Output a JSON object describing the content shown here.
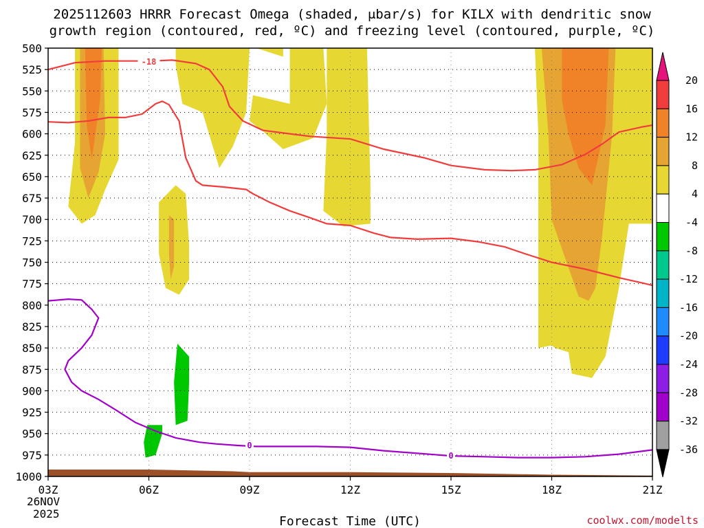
{
  "title": {
    "line1": "2025112603 HRRR Forecast Omega (shaded, μbar/s) for KILX with dendritic snow",
    "line2": "growth region (contoured, red, ºC) and freezing level (contoured, purple, ºC)"
  },
  "credit": "coolwx.com/modelts",
  "chart_data": {
    "type": "heatmap",
    "xlabel": "Forecast Time (UTC)",
    "ylabel": "",
    "x_ticks": [
      "03Z",
      "06Z",
      "09Z",
      "12Z",
      "15Z",
      "18Z",
      "21Z"
    ],
    "x_tick_hours": [
      3,
      6,
      9,
      12,
      15,
      18,
      21
    ],
    "x_date_label": [
      "26NOV",
      "2025"
    ],
    "xlim": [
      3,
      21
    ],
    "y_ticks": [
      500,
      525,
      550,
      575,
      600,
      625,
      650,
      675,
      700,
      725,
      750,
      775,
      800,
      825,
      850,
      875,
      900,
      925,
      950,
      975,
      1000
    ],
    "ylim": [
      500,
      1000
    ],
    "y_reversed": true,
    "grid": true,
    "colorbar": {
      "labels": [
        "20",
        "16",
        "12",
        "8",
        "4",
        "-4",
        "-8",
        "-12",
        "-16",
        "-20",
        "-24",
        "-28",
        "-32",
        "-36"
      ],
      "levels": [
        20,
        16,
        12,
        8,
        4,
        -4,
        -8,
        -12,
        -16,
        -20,
        -24,
        -28,
        -32,
        -36
      ],
      "colors": [
        "#f03c3c",
        "#f08228",
        "#e6a532",
        "#e6d732",
        "#ffffff",
        "#00c800",
        "#00c88c",
        "#00b4c8",
        "#1e8cff",
        "#1e3cff",
        "#8c1ee6",
        "#a000c8",
        "#a0a0a0"
      ],
      "top_arrow_color": "#e6137d",
      "bottom_arrow_color": "#000000"
    },
    "omega_shading": [
      {
        "level": 4,
        "color": "#e6d732",
        "points": [
          [
            3.8,
            500
          ],
          [
            4.6,
            500
          ],
          [
            5.1,
            500
          ],
          [
            5.1,
            630
          ],
          [
            4.7,
            665
          ],
          [
            4.4,
            695
          ],
          [
            4.0,
            705
          ],
          [
            3.6,
            685
          ],
          [
            3.8,
            610
          ]
        ]
      },
      {
        "level": 8,
        "color": "#e6a532",
        "points": [
          [
            3.95,
            500
          ],
          [
            4.65,
            500
          ],
          [
            4.7,
            600
          ],
          [
            4.5,
            645
          ],
          [
            4.2,
            675
          ],
          [
            3.95,
            640
          ]
        ]
      },
      {
        "level": 12,
        "color": "#f08228",
        "points": [
          [
            4.1,
            500
          ],
          [
            4.6,
            500
          ],
          [
            4.55,
            560
          ],
          [
            4.3,
            630
          ],
          [
            4.15,
            590
          ]
        ]
      },
      {
        "level": 4,
        "color": "#e6d732",
        "points": [
          [
            6.8,
            500
          ],
          [
            9.0,
            500
          ],
          [
            8.9,
            575
          ],
          [
            8.5,
            615
          ],
          [
            8.1,
            640
          ],
          [
            7.6,
            575
          ],
          [
            7.0,
            565
          ],
          [
            6.8,
            520
          ]
        ]
      },
      {
        "level": 4,
        "color": "#e6d732",
        "points": [
          [
            7.2,
            500
          ],
          [
            7.3,
            500
          ],
          [
            7.2,
            525
          ],
          [
            7.15,
            510
          ]
        ]
      },
      {
        "level": 4,
        "color": "#e6d732",
        "points": [
          [
            9.2,
            500
          ],
          [
            10.0,
            500
          ],
          [
            10.0,
            510
          ]
        ]
      },
      {
        "level": 4,
        "color": "#e6d732",
        "points": [
          [
            10.2,
            500
          ],
          [
            11.2,
            500
          ],
          [
            11.3,
            565
          ],
          [
            10.9,
            605
          ],
          [
            10.0,
            618
          ],
          [
            9.4,
            597
          ],
          [
            9.0,
            585
          ],
          [
            9.1,
            555
          ],
          [
            10.2,
            565
          ]
        ]
      },
      {
        "level": 4,
        "color": "#e6d732",
        "points": [
          [
            11.3,
            500
          ],
          [
            12.5,
            500
          ],
          [
            12.6,
            660
          ],
          [
            12.6,
            705
          ],
          [
            11.8,
            708
          ],
          [
            11.2,
            690
          ],
          [
            11.3,
            600
          ]
        ]
      },
      {
        "level": 4,
        "color": "#e6d732",
        "points": [
          [
            6.3,
            680
          ],
          [
            6.8,
            660
          ],
          [
            7.1,
            670
          ],
          [
            7.2,
            730
          ],
          [
            7.2,
            770
          ],
          [
            6.9,
            788
          ],
          [
            6.5,
            780
          ],
          [
            6.3,
            740
          ]
        ]
      },
      {
        "level": 8,
        "color": "#e6a532",
        "points": [
          [
            6.6,
            695
          ],
          [
            6.75,
            700
          ],
          [
            6.75,
            755
          ],
          [
            6.65,
            770
          ],
          [
            6.6,
            740
          ]
        ]
      },
      {
        "level": 4,
        "color": "#e6d732",
        "points": [
          [
            17.5,
            500
          ],
          [
            21.0,
            500
          ],
          [
            21.0,
            705
          ],
          [
            20.3,
            705
          ],
          [
            20.0,
            780
          ],
          [
            19.6,
            860
          ],
          [
            19.2,
            885
          ],
          [
            18.6,
            880
          ],
          [
            18.5,
            855
          ],
          [
            18.1,
            850
          ],
          [
            18.0,
            847
          ],
          [
            17.6,
            850
          ],
          [
            17.6,
            700
          ],
          [
            17.6,
            600
          ]
        ]
      },
      {
        "level": 8,
        "color": "#e6a532",
        "points": [
          [
            17.7,
            500
          ],
          [
            19.9,
            500
          ],
          [
            19.8,
            600
          ],
          [
            19.5,
            720
          ],
          [
            19.3,
            780
          ],
          [
            19.1,
            795
          ],
          [
            18.8,
            790
          ],
          [
            18.4,
            745
          ],
          [
            18.0,
            700
          ],
          [
            17.9,
            600
          ]
        ]
      },
      {
        "level": 12,
        "color": "#f08228",
        "points": [
          [
            18.3,
            500
          ],
          [
            19.7,
            500
          ],
          [
            19.6,
            590
          ],
          [
            19.2,
            660
          ],
          [
            18.8,
            640
          ],
          [
            18.5,
            600
          ],
          [
            18.3,
            560
          ]
        ]
      },
      {
        "level": -4,
        "color": "#00c800",
        "points": [
          [
            6.85,
            845
          ],
          [
            7.2,
            860
          ],
          [
            7.2,
            890
          ],
          [
            7.15,
            935
          ],
          [
            6.8,
            940
          ],
          [
            6.75,
            890
          ]
        ]
      },
      {
        "level": -4,
        "color": "#00c800",
        "points": [
          [
            5.95,
            940
          ],
          [
            6.4,
            940
          ],
          [
            6.4,
            950
          ],
          [
            6.2,
            975
          ],
          [
            5.9,
            978
          ],
          [
            5.85,
            960
          ]
        ]
      }
    ],
    "dgz_contours": {
      "color": "#f03c3c",
      "level_label": "-18",
      "label_position": [
        6.0,
        517
      ],
      "upper": [
        [
          3.0,
          525
        ],
        [
          3.8,
          517
        ],
        [
          4.7,
          515
        ],
        [
          5.4,
          515
        ],
        [
          6.1,
          515
        ],
        [
          6.7,
          514
        ],
        [
          7.4,
          518
        ],
        [
          7.8,
          525
        ],
        [
          8.2,
          545
        ],
        [
          8.4,
          568
        ],
        [
          8.8,
          585
        ],
        [
          9.4,
          596
        ],
        [
          10.2,
          600
        ],
        [
          10.8,
          603
        ],
        [
          12.0,
          606
        ],
        [
          13.0,
          618
        ],
        [
          14.2,
          628
        ],
        [
          15.0,
          637
        ],
        [
          16.0,
          642
        ],
        [
          16.8,
          643
        ],
        [
          17.5,
          642
        ],
        [
          18.3,
          636
        ],
        [
          19.0,
          624
        ],
        [
          19.5,
          612
        ],
        [
          20.0,
          598
        ],
        [
          20.7,
          592
        ],
        [
          21.0,
          590
        ]
      ],
      "lower": [
        [
          3.0,
          586
        ],
        [
          3.6,
          587
        ],
        [
          4.2,
          585
        ],
        [
          4.8,
          581
        ],
        [
          5.3,
          581
        ],
        [
          5.8,
          577
        ],
        [
          6.2,
          565
        ],
        [
          6.4,
          562
        ],
        [
          6.6,
          566
        ],
        [
          6.9,
          585
        ],
        [
          7.1,
          628
        ],
        [
          7.4,
          655
        ],
        [
          7.6,
          660
        ],
        [
          8.2,
          662
        ],
        [
          8.9,
          665
        ],
        [
          9.1,
          670
        ],
        [
          9.6,
          680
        ],
        [
          10.2,
          690
        ],
        [
          10.8,
          698
        ],
        [
          11.3,
          705
        ],
        [
          12.0,
          707
        ],
        [
          12.7,
          716
        ],
        [
          13.2,
          721
        ],
        [
          14.0,
          723
        ],
        [
          15.0,
          722
        ],
        [
          15.8,
          726
        ],
        [
          16.6,
          732
        ],
        [
          17.2,
          740
        ],
        [
          18.0,
          750
        ],
        [
          19.0,
          758
        ],
        [
          20.0,
          768
        ],
        [
          20.8,
          775
        ],
        [
          21.0,
          777
        ]
      ]
    },
    "freezing_level": {
      "color": "#a000c8",
      "level_label": "0",
      "label_positions": [
        [
          9.0,
          964
        ],
        [
          15.0,
          976
        ]
      ],
      "points": [
        [
          3.0,
          795
        ],
        [
          3.6,
          793
        ],
        [
          4.0,
          794
        ],
        [
          4.3,
          805
        ],
        [
          4.5,
          815
        ],
        [
          4.3,
          835
        ],
        [
          4.0,
          850
        ],
        [
          3.6,
          865
        ],
        [
          3.5,
          875
        ],
        [
          3.7,
          890
        ],
        [
          4.0,
          900
        ],
        [
          4.5,
          910
        ],
        [
          5.0,
          922
        ],
        [
          5.6,
          937
        ],
        [
          6.2,
          947
        ],
        [
          6.8,
          955
        ],
        [
          7.5,
          960
        ],
        [
          8.0,
          962
        ],
        [
          8.7,
          964
        ],
        [
          9.2,
          965
        ],
        [
          10.0,
          965
        ],
        [
          11.0,
          965
        ],
        [
          12.0,
          966
        ],
        [
          13.0,
          970
        ],
        [
          14.0,
          973
        ],
        [
          15.0,
          976
        ],
        [
          16.0,
          977
        ],
        [
          17.0,
          978
        ],
        [
          18.0,
          978
        ],
        [
          19.0,
          977
        ],
        [
          20.0,
          974
        ],
        [
          20.6,
          971
        ],
        [
          21.0,
          969
        ]
      ]
    },
    "ground": {
      "color": "#9c5028",
      "points": [
        [
          3.0,
          992
        ],
        [
          6.0,
          992
        ],
        [
          8.5,
          994
        ],
        [
          9.0,
          995
        ],
        [
          12.0,
          995
        ],
        [
          15.0,
          996
        ],
        [
          18.0,
          998
        ],
        [
          21.0,
          999
        ]
      ]
    }
  }
}
